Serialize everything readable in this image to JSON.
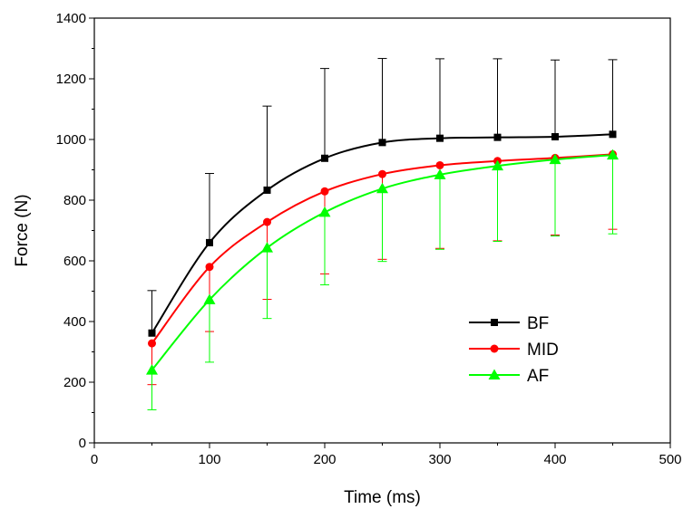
{
  "chart_data": {
    "type": "line",
    "title": "",
    "xlabel": "Time (ms)",
    "ylabel": "Force (N)",
    "xlim": [
      0,
      500
    ],
    "ylim": [
      0,
      1400
    ],
    "xticks": [
      0,
      100,
      200,
      300,
      400,
      500
    ],
    "yticks": [
      0,
      200,
      400,
      600,
      800,
      1000,
      1200,
      1400
    ],
    "grid": false,
    "legend_position": "bottom-right",
    "x": [
      50,
      100,
      150,
      200,
      250,
      300,
      350,
      400,
      450
    ],
    "series": [
      {
        "name": "BF",
        "color": "#000000",
        "marker": "square",
        "values": [
          362,
          660,
          833,
          938,
          990,
          1004,
          1007,
          1009,
          1017
        ],
        "error_upper": [
          502,
          888,
          1110,
          1234,
          1267,
          1266,
          1266,
          1262,
          1263
        ],
        "error_lower": null
      },
      {
        "name": "MID",
        "color": "#ff0000",
        "marker": "circle",
        "values": [
          328,
          580,
          728,
          829,
          886,
          915,
          929,
          939,
          951
        ],
        "error_upper": null,
        "error_lower": [
          192,
          367,
          473,
          557,
          605,
          641,
          666,
          685,
          704
        ]
      },
      {
        "name": "AF",
        "color": "#00ff00",
        "marker": "triangle",
        "values": [
          240,
          472,
          643,
          760,
          838,
          884,
          913,
          934,
          949
        ],
        "error_upper": null,
        "error_lower": [
          109,
          266,
          410,
          521,
          598,
          638,
          664,
          682,
          689
        ]
      }
    ]
  }
}
